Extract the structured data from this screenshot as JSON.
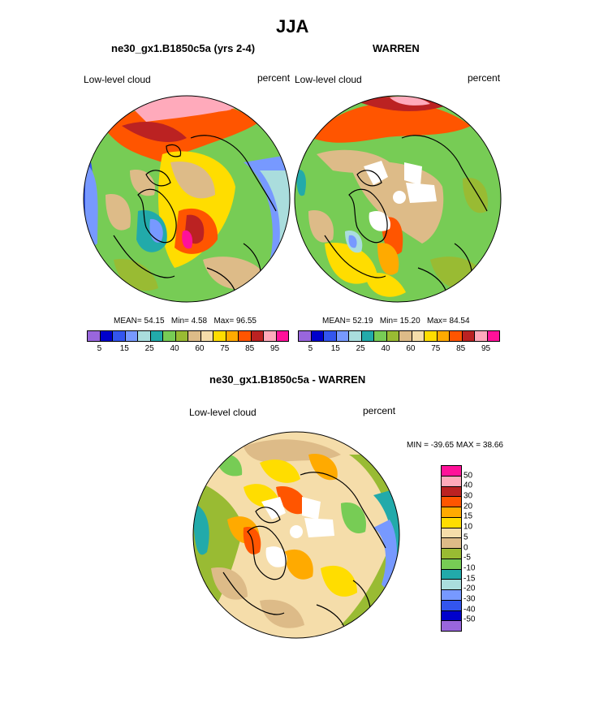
{
  "main_title": "JJA",
  "panels": [
    {
      "title": "ne30_gx1.B1850c5a (yrs 2-4)",
      "left_label": "Low-level cloud",
      "right_label": "percent",
      "stats": {
        "mean": "MEAN=  54.15",
        "min": "Min=   4.58",
        "max": "Max=  96.55"
      },
      "colorbar_ticks": [
        "5",
        "15",
        "25",
        "40",
        "60",
        "75",
        "85",
        "95"
      ]
    },
    {
      "title": "WARREN",
      "left_label": "Low-level cloud",
      "right_label": "percent",
      "stats": {
        "mean": "MEAN=  52.19",
        "min": "Min=  15.20",
        "max": "Max=  84.54"
      },
      "colorbar_ticks": [
        "5",
        "15",
        "25",
        "40",
        "60",
        "75",
        "85",
        "95"
      ]
    },
    {
      "title": "ne30_gx1.B1850c5a - WARREN",
      "left_label": "Low-level cloud",
      "right_label": "percent",
      "minmax": "MIN = -39.65 MAX =  38.66",
      "colorbar_ticks": [
        "50",
        "40",
        "30",
        "20",
        "15",
        "10",
        "5",
        "0",
        "-5",
        "-10",
        "-15",
        "-20",
        "-30",
        "-40",
        "-50"
      ]
    }
  ],
  "colors": {
    "abs_scale": [
      "#9966dd",
      "#0000cc",
      "#3355ee",
      "#7799ff",
      "#aadddd",
      "#22aaaa",
      "#77cc55",
      "#99bb33",
      "#ddbb88",
      "#f5ddaa",
      "#ffdd00",
      "#ffaa00",
      "#ff5500",
      "#bb2222",
      "#ffaabb",
      "#ff1199"
    ],
    "diff_scale": [
      "#ff1199",
      "#ffaabb",
      "#bb2222",
      "#ff5500",
      "#ffaa00",
      "#ffdd00",
      "#f5ddaa",
      "#ddbb88",
      "#99bb33",
      "#77cc55",
      "#22aaaa",
      "#aadddd",
      "#7799ff",
      "#3355ee",
      "#0000cc",
      "#9966dd"
    ]
  },
  "chart_data": [
    {
      "type": "heatmap",
      "projection": "north polar stereographic",
      "title": "ne30_gx1.B1850c5a (yrs 2-4)",
      "variable": "Low-level cloud",
      "units": "percent",
      "mean": 54.15,
      "min": 4.58,
      "max": 96.55,
      "contour_levels": [
        5,
        10,
        15,
        20,
        25,
        30,
        40,
        50,
        60,
        65,
        70,
        75,
        80,
        85,
        90,
        95
      ]
    },
    {
      "type": "heatmap",
      "projection": "north polar stereographic",
      "title": "WARREN",
      "variable": "Low-level cloud",
      "units": "percent",
      "mean": 52.19,
      "min": 15.2,
      "max": 84.54,
      "contour_levels": [
        5,
        10,
        15,
        20,
        25,
        30,
        40,
        50,
        60,
        65,
        70,
        75,
        80,
        85,
        90,
        95
      ]
    },
    {
      "type": "heatmap",
      "projection": "north polar stereographic",
      "title": "ne30_gx1.B1850c5a - WARREN",
      "variable": "Low-level cloud",
      "units": "percent",
      "min": -39.65,
      "max": 38.66,
      "contour_levels": [
        -50,
        -40,
        -30,
        -20,
        -15,
        -10,
        -5,
        0,
        5,
        10,
        15,
        20,
        30,
        40,
        50
      ]
    }
  ]
}
